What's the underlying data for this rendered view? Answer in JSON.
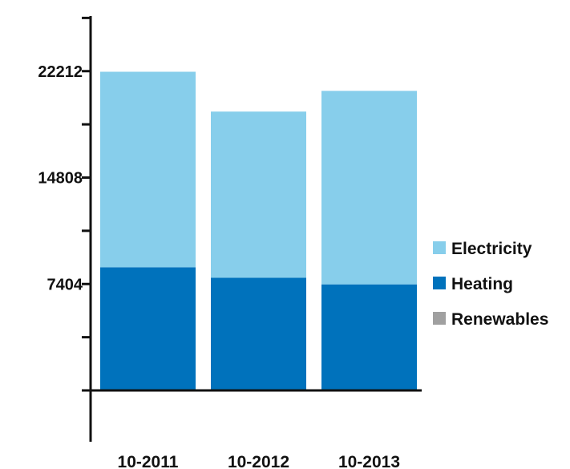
{
  "chart_data": {
    "type": "bar",
    "stacked": true,
    "categories": [
      "10-2011",
      "10-2012",
      "10-2013"
    ],
    "series": [
      {
        "name": "Heating",
        "color": "#0072bc",
        "values": [
          8570,
          7840,
          7380
        ]
      },
      {
        "name": "Electricity",
        "color": "#87ceeb",
        "values": [
          13600,
          11560,
          13460
        ]
      },
      {
        "name": "Renewables",
        "color": "#a0a0a0",
        "values": [
          0,
          0,
          0
        ]
      }
    ],
    "legend_order": [
      "Electricity",
      "Heating",
      "Renewables"
    ],
    "y_ticks": [
      "7404",
      "14808",
      "22212"
    ],
    "y_tick_values": [
      7404,
      14808,
      22212
    ],
    "ylim": [
      -3702,
      25914
    ],
    "legend_position": "right",
    "grid": false
  }
}
